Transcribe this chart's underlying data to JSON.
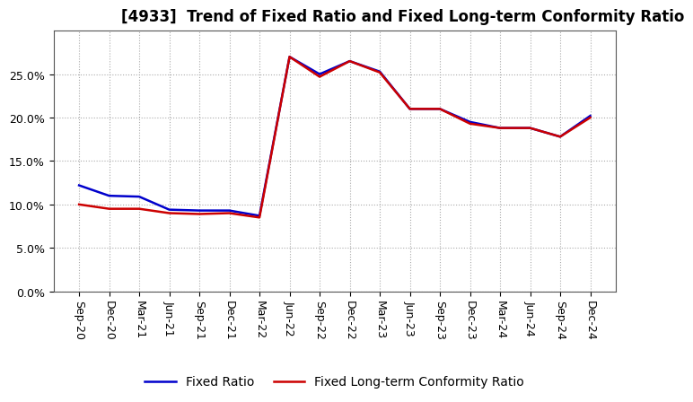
{
  "title": "[4933]  Trend of Fixed Ratio and Fixed Long-term Conformity Ratio",
  "x_labels": [
    "Sep-20",
    "Dec-20",
    "Mar-21",
    "Jun-21",
    "Sep-21",
    "Dec-21",
    "Mar-22",
    "Jun-22",
    "Sep-22",
    "Dec-22",
    "Mar-23",
    "Jun-23",
    "Sep-23",
    "Dec-23",
    "Mar-24",
    "Jun-24",
    "Sep-24",
    "Dec-24"
  ],
  "fixed_ratio": [
    0.122,
    0.11,
    0.109,
    0.094,
    0.093,
    0.093,
    0.087,
    0.27,
    0.25,
    0.265,
    0.253,
    0.21,
    0.21,
    0.195,
    0.188,
    0.188,
    0.178,
    0.202
  ],
  "fixed_lt_ratio": [
    0.1,
    0.095,
    0.095,
    0.09,
    0.089,
    0.09,
    0.085,
    0.27,
    0.247,
    0.265,
    0.252,
    0.21,
    0.21,
    0.193,
    0.188,
    0.188,
    0.178,
    0.2
  ],
  "fixed_ratio_color": "#0000cc",
  "fixed_lt_ratio_color": "#cc0000",
  "background_color": "#ffffff",
  "plot_bg_color": "#ffffff",
  "grid_color": "#aaaaaa",
  "ylim": [
    0.0,
    0.3
  ],
  "yticks": [
    0.0,
    0.05,
    0.1,
    0.15,
    0.2,
    0.25
  ],
  "legend_fixed_ratio": "Fixed Ratio",
  "legend_fixed_lt_ratio": "Fixed Long-term Conformity Ratio",
  "line_width": 1.8,
  "title_fontsize": 12,
  "tick_fontsize": 9,
  "legend_fontsize": 10
}
